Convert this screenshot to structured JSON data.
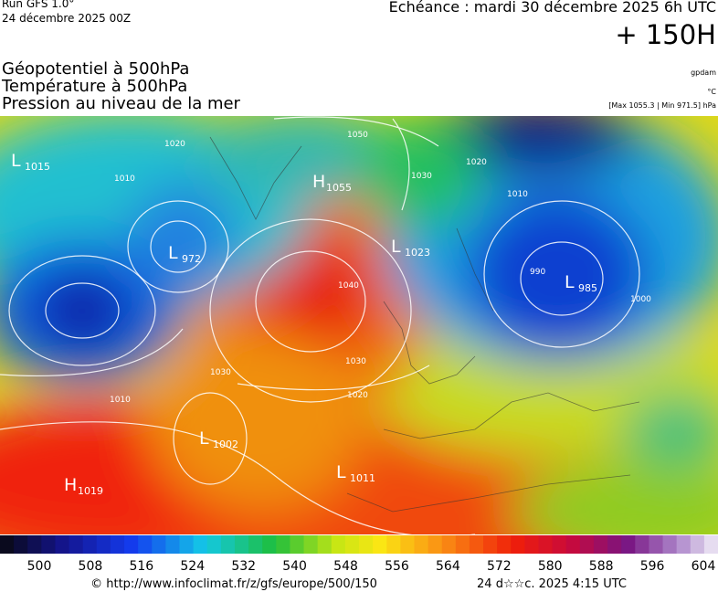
{
  "header": {
    "run": "Run GFS 1.0°",
    "run_date": "24 décembre 2025 00Z",
    "valid": "Echéance : mardi 30 décembre 2025 6h UTC",
    "lead": "+ 150H"
  },
  "fields": [
    "Géopotentiel à 500hPa",
    "Température à 500hPa",
    "Pression au niveau de la mer"
  ],
  "units": {
    "geopotential": "gpdam",
    "temperature": "°C",
    "pressure": "[Max 1055.3 | Min 971.5] hPa"
  },
  "centers": [
    {
      "letter": "L",
      "value": "1015"
    },
    {
      "letter": "L",
      "value": "972"
    },
    {
      "letter": "H",
      "value": "1055"
    },
    {
      "letter": "L",
      "value": "1023"
    },
    {
      "letter": "L",
      "value": "985"
    },
    {
      "letter": "L",
      "value": "1002"
    },
    {
      "letter": "L",
      "value": "1011"
    },
    {
      "letter": "H",
      "value": "1019"
    }
  ],
  "isobar_labels": [
    "1010",
    "1020",
    "1030",
    "1040",
    "1020",
    "1030",
    "1010",
    "1000",
    "990",
    "1010",
    "1020",
    "1030",
    "1050"
  ],
  "colorbar": {
    "ticks": [
      500,
      508,
      516,
      524,
      532,
      540,
      548,
      556,
      564,
      572,
      580,
      588,
      596,
      604
    ]
  },
  "footer": {
    "url": "© http://www.infoclimat.fr/z/gfs/europe/500/150",
    "stamp": "24 d☆☆c. 2025  4:15 UTC"
  }
}
